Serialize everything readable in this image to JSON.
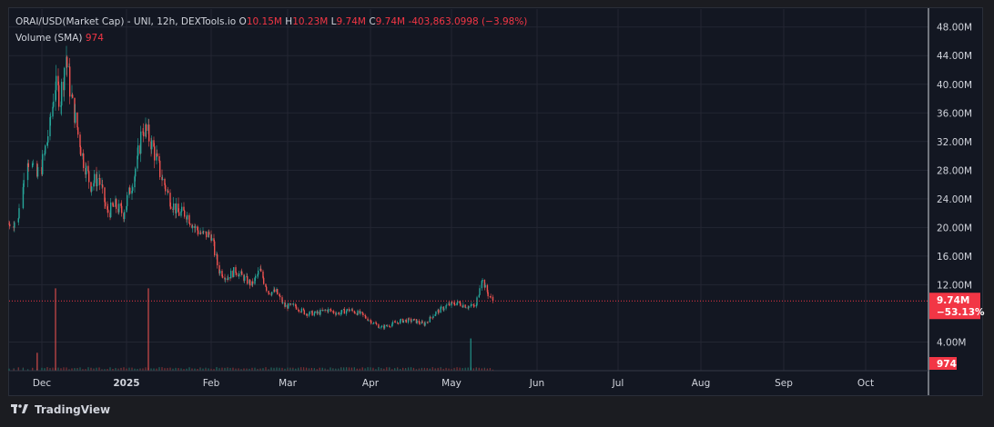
{
  "legend": {
    "symbol": "ORAI/USD(Market Cap)",
    "meta": "- UNI, 12h, DEXTools.io",
    "o_key": "O",
    "o_val": "10.15M",
    "h_key": "H",
    "h_val": "10.23M",
    "l_key": "L",
    "l_val": "9.74M",
    "c_key": "C",
    "c_val": "9.74M",
    "change": "-403,863.0998 (−3.98%)",
    "volume_label": "Volume (SMA)",
    "volume_val": "974"
  },
  "price_badge": {
    "price": "9.74M",
    "change": "−53.13%"
  },
  "volume_badge": "974",
  "footer": {
    "brand": "TradingView"
  },
  "colors": {
    "up": "#26a69a",
    "down": "#ef5350",
    "badge": "#f23645",
    "grid": "#232632",
    "bg": "#131722"
  },
  "chart_data": {
    "type": "candlestick",
    "title": "ORAI/USD(Market Cap)",
    "interval": "12h",
    "y_ticks": [
      "48.00M",
      "44.00M",
      "40.00M",
      "36.00M",
      "32.00M",
      "28.00M",
      "24.00M",
      "20.00M",
      "16.00M",
      "12.00M",
      "4.00M"
    ],
    "y_tick_values": [
      48,
      44,
      40,
      36,
      32,
      28,
      24,
      20,
      16,
      12,
      4
    ],
    "x_ticks": [
      "Dec",
      "2025",
      "Feb",
      "Mar",
      "Apr",
      "May",
      "Jun",
      "Jul",
      "Aug",
      "Sep",
      "Oct"
    ],
    "bold_x_ticks": [
      "2025"
    ],
    "ylim": [
      0,
      50.5
    ],
    "unit": "M",
    "current_price": 9.74,
    "grid": true,
    "month_starts": [
      "2024-11-24",
      "2024-12-01",
      "2025-01-01",
      "2025-02-01",
      "2025-03-01",
      "2025-04-01",
      "2025-05-01",
      "2025-06-01",
      "2025-07-01",
      "2025-08-01",
      "2025-09-01",
      "2025-10-01"
    ],
    "close_series": {
      "dates": [
        "2024-11-24",
        "2024-11-26",
        "2024-11-28",
        "2024-11-30",
        "2024-12-02",
        "2024-12-04",
        "2024-12-06",
        "2024-12-08",
        "2024-12-10",
        "2024-12-12",
        "2024-12-14",
        "2024-12-16",
        "2024-12-19",
        "2024-12-22",
        "2024-12-25",
        "2024-12-28",
        "2024-12-31",
        "2025-01-03",
        "2025-01-05",
        "2025-01-07",
        "2025-01-09",
        "2025-01-11",
        "2025-01-14",
        "2025-01-17",
        "2025-01-20",
        "2025-01-23",
        "2025-01-26",
        "2025-01-29",
        "2025-02-01",
        "2025-02-04",
        "2025-02-07",
        "2025-02-10",
        "2025-02-13",
        "2025-02-16",
        "2025-02-19",
        "2025-02-22",
        "2025-02-25",
        "2025-02-28",
        "2025-03-04",
        "2025-03-08",
        "2025-03-12",
        "2025-03-16",
        "2025-03-20",
        "2025-03-24",
        "2025-03-28",
        "2025-04-01",
        "2025-04-05",
        "2025-04-09",
        "2025-04-13",
        "2025-04-17",
        "2025-04-21",
        "2025-04-25",
        "2025-04-29",
        "2025-05-03",
        "2025-05-07",
        "2025-05-10",
        "2025-05-12",
        "2025-05-14",
        "2025-05-16"
      ],
      "values": [
        20.5,
        21,
        30,
        27,
        30,
        34,
        40,
        38,
        44,
        38,
        34,
        30,
        26,
        27,
        22,
        23,
        22,
        26,
        29,
        34,
        33,
        31,
        27,
        24,
        22,
        22,
        20,
        19,
        19,
        14,
        13,
        14,
        13,
        12,
        14,
        11,
        11,
        9,
        9,
        8,
        8,
        8.5,
        8,
        8.5,
        8,
        7,
        6,
        6.5,
        7,
        7,
        6.5,
        8,
        9,
        9.5,
        9,
        9,
        13,
        11,
        9.74
      ]
    },
    "volume": {
      "dates": [
        "2024-12-06",
        "2025-01-09",
        "2024-11-30",
        "2025-05-08"
      ],
      "values": [
        11.5,
        11.5,
        2.5,
        4.5
      ],
      "last": 974
    }
  }
}
